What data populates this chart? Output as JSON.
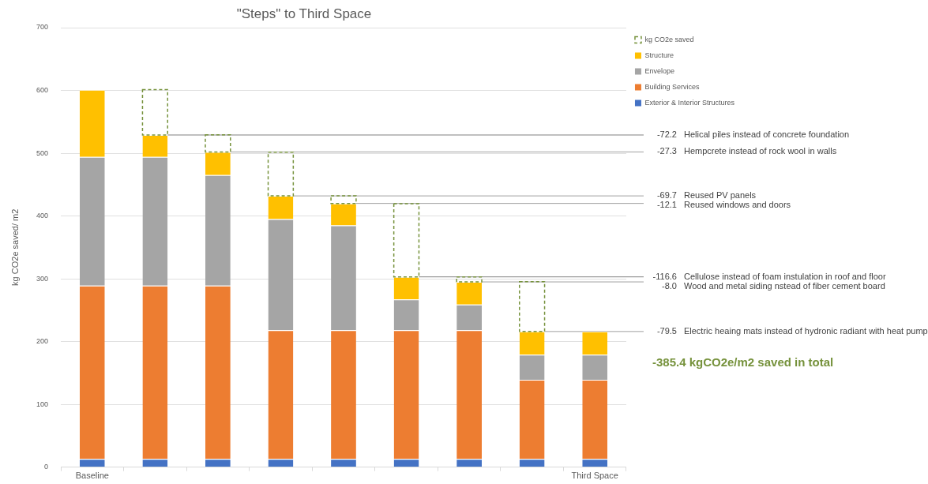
{
  "chart_data": {
    "type": "bar",
    "title": "\"Steps\" to Third Space",
    "ylabel": "kg CO2e saved/ m2",
    "stacked": true,
    "legend": "top right",
    "grid": "y",
    "categories": [
      "Baseline",
      null,
      null,
      null,
      null,
      null,
      null,
      null,
      "Third Space"
    ],
    "ylim": [
      0,
      700
    ],
    "yticks": [
      0,
      100,
      200,
      300,
      400,
      500,
      600,
      700
    ],
    "series": [
      {
        "name": "Exterior & Interior Structures",
        "color": "#4472c4",
        "values": [
          13,
          13,
          13,
          13,
          13,
          13,
          13,
          13,
          13
        ]
      },
      {
        "name": "Building Services",
        "color": "#ed7d31",
        "values": [
          276,
          276,
          276,
          205,
          205,
          205,
          205,
          126,
          126
        ]
      },
      {
        "name": "Envelope",
        "color": "#a5a5a5",
        "values": [
          205,
          205,
          176,
          177,
          167,
          49,
          41,
          40,
          40
        ]
      },
      {
        "name": "Structure",
        "color": "#ffc000",
        "values": [
          107,
          35,
          37,
          37,
          35,
          36,
          36,
          37,
          37
        ]
      },
      {
        "name": "kg CO2e saved",
        "color": "#76923c",
        "line_style": "dashed",
        "values": [
          null,
          72.2,
          27.3,
          69.7,
          12.1,
          116.6,
          8.0,
          79.5,
          null
        ]
      }
    ],
    "ref_lines": [
      {
        "axis": "y",
        "value": 529,
        "color": "#808080"
      },
      {
        "axis": "y",
        "value": 502,
        "color": "#a0a0a0"
      },
      {
        "axis": "y",
        "value": 432,
        "color": "#a0a0a0"
      },
      {
        "axis": "y",
        "value": 420,
        "color": "#a0a0a0"
      },
      {
        "axis": "y",
        "value": 303,
        "color": "#808080"
      },
      {
        "axis": "y",
        "value": 295,
        "color": "#a0a0a0"
      },
      {
        "axis": "y",
        "value": 216,
        "color": "#a0a0a0"
      }
    ],
    "annotations": [
      "-72.2",
      "-27.3",
      "-69.7",
      "-12.1",
      "-116.6",
      "-8.0",
      "-79.5",
      "Helical piles instead of concrete foundation",
      "Hempcrete instead of rock wool in walls",
      "Reused PV panels",
      "Reused windows and doors",
      "Cellulose instead of foam instulation in roof and floor",
      "Wood and metal siding nstead of fiber cement board",
      "Electric heaing mats instead of hydronic radiant with heat pump",
      "-385.4 kgCO2e/m2 saved in total"
    ]
  }
}
